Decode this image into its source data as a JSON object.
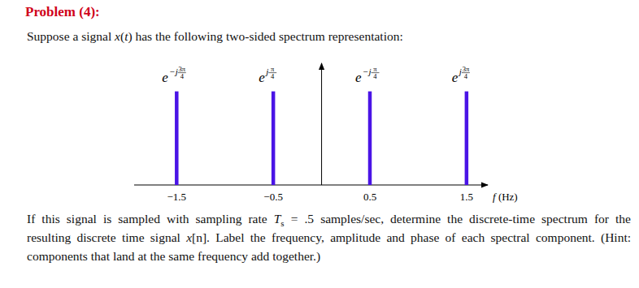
{
  "title": "Problem (4):",
  "intro": [
    {
      "text": "Suppose a signal "
    },
    {
      "text": "x",
      "style": "italic"
    },
    {
      "text": "("
    },
    {
      "text": "t",
      "style": "italic"
    },
    {
      "text": ") has the following two-sided spectrum representation:"
    }
  ],
  "chart_data": {
    "type": "stem",
    "x": [
      -1.5,
      -0.5,
      0.5,
      1.5
    ],
    "values": [
      1,
      1,
      1,
      1
    ],
    "phasors": [
      {
        "base": "e",
        "sign": "−j",
        "num": "3π",
        "den": "4"
      },
      {
        "base": "e",
        "sign": "j",
        "num": "π",
        "den": "4"
      },
      {
        "base": "e",
        "sign": "−j",
        "num": "π",
        "den": "4"
      },
      {
        "base": "e",
        "sign": "j",
        "num": "3π",
        "den": "4"
      }
    ],
    "x_label": "f (Hz)",
    "xlim": [
      -1.94,
      1.72
    ],
    "ylim": [
      0,
      1.3
    ],
    "xticks": [
      -1.5,
      -0.5,
      0.5,
      1.5
    ],
    "tick_labels": "x",
    "color": "#4a14e6"
  },
  "question": [
    [
      {
        "text": "If this signal is sampled with sampling rate "
      },
      {
        "text": "T",
        "style": "italic"
      },
      {
        "text": "s",
        "style": "sub"
      },
      {
        "text": " = .5 samples/sec, determine the discrete-time spectrum for the"
      }
    ],
    [
      {
        "text": "resulting discrete time signal "
      },
      {
        "text": "x",
        "style": "italic"
      },
      {
        "text": "[n]. Label the frequency, amplitude and phase of each spectral component. (Hint:"
      }
    ],
    [
      {
        "text": "components that land at the same frequency add together.)"
      }
    ]
  ]
}
